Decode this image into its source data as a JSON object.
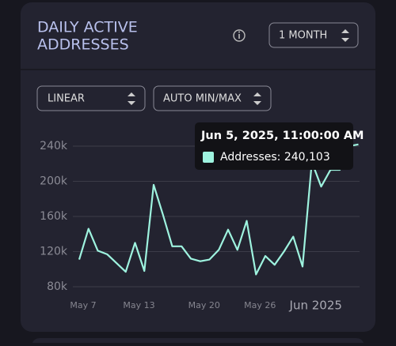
{
  "chart_data": {
    "type": "line",
    "title": [
      "DAILY ACTIVE",
      "ADDRESSES"
    ],
    "controls": {
      "range": "1 MONTH",
      "scale": "LINEAR",
      "bounds": "AUTO MIN/MAX"
    },
    "categories": [
      "May 7",
      null,
      null,
      null,
      null,
      null,
      "May 13",
      null,
      null,
      null,
      null,
      null,
      null,
      "May 20",
      null,
      null,
      null,
      null,
      null,
      "May 26",
      null,
      null,
      null,
      null,
      null,
      "Jun 2025",
      null,
      null,
      null,
      null,
      null
    ],
    "series": [
      {
        "color": "#9ef3df",
        "values": [
          111000,
          146000,
          121000,
          117000,
          107000,
          97000,
          130000,
          98000,
          196000,
          162000,
          126000,
          126000,
          112000,
          109000,
          111000,
          122000,
          145000,
          122000,
          155000,
          94000,
          115000,
          105000,
          120000,
          137000,
          103000,
          222000,
          194000,
          213000,
          213000,
          240103,
          242000
        ]
      }
    ],
    "ylim": [
      60000,
      250000
    ],
    "yticks": [
      {
        "value": 80000,
        "label": "80k"
      },
      {
        "value": 120000,
        "label": "120k"
      },
      {
        "value": 160000,
        "label": "160k"
      },
      {
        "value": 200000,
        "label": "200k"
      },
      {
        "value": 240000,
        "label": "240k"
      }
    ],
    "grid": true,
    "tooltip": {
      "title": "Jun 5, 2025, 11:00:00 AM",
      "text": "Addresses: 240,103"
    }
  }
}
